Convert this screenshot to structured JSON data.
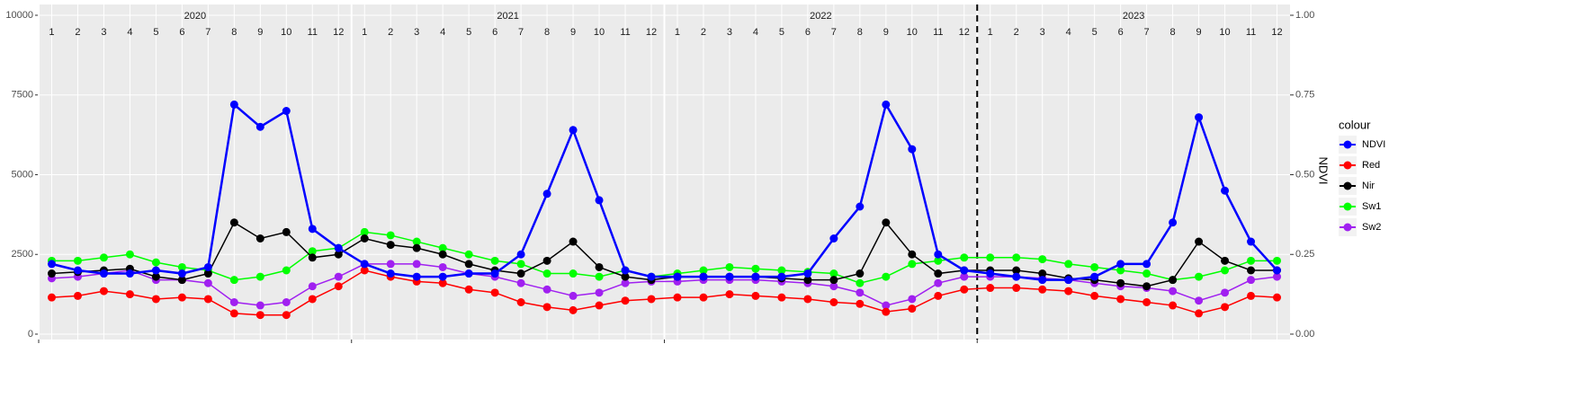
{
  "chart_data": {
    "type": "line",
    "years": [
      "2020",
      "2021",
      "2022",
      "2023"
    ],
    "categories": [
      "1",
      "2",
      "3",
      "4",
      "5",
      "6",
      "7",
      "8",
      "9",
      "10",
      "11",
      "12",
      "1",
      "2",
      "3",
      "4",
      "5",
      "6",
      "7",
      "8",
      "9",
      "10",
      "11",
      "12",
      "1",
      "2",
      "3",
      "4",
      "5",
      "6",
      "7",
      "8",
      "9",
      "10",
      "11",
      "12",
      "1",
      "2",
      "3",
      "4",
      "5",
      "6",
      "7",
      "8",
      "9",
      "10",
      "11",
      "12"
    ],
    "ylim": [
      0,
      10000
    ],
    "yticks": [
      0,
      2500,
      5000,
      7500,
      10000
    ],
    "y2label": "NDVI",
    "y2lim": [
      0,
      1
    ],
    "y2ticks": [
      {
        "value": 0,
        "label": "0.00"
      },
      {
        "value": 0.25,
        "label": "0.25"
      },
      {
        "value": 0.5,
        "label": "0.50"
      },
      {
        "value": 0.75,
        "label": "0.75"
      },
      {
        "value": 1,
        "label": "1.00"
      }
    ],
    "legend_title": "colour",
    "legend": "right",
    "grid": true,
    "series": [
      {
        "name": "NDVI",
        "color": "#0000ff",
        "axis": "y2",
        "values": [
          0.22,
          0.2,
          0.19,
          0.19,
          0.2,
          0.19,
          0.21,
          0.72,
          0.65,
          0.7,
          0.33,
          0.27,
          0.22,
          0.19,
          0.18,
          0.18,
          0.19,
          0.19,
          0.25,
          0.44,
          0.64,
          0.42,
          0.2,
          0.18,
          0.18,
          0.18,
          0.18,
          0.18,
          0.18,
          0.19,
          0.3,
          0.4,
          0.72,
          0.58,
          0.25,
          0.2,
          0.19,
          0.18,
          0.17,
          0.17,
          0.18,
          0.22,
          0.22,
          0.35,
          0.68,
          0.45,
          0.29,
          0.2
        ]
      },
      {
        "name": "Red",
        "color": "#ff0000",
        "values": [
          1150,
          1200,
          1350,
          1250,
          1100,
          1150,
          1100,
          650,
          600,
          600,
          1100,
          1500,
          2000,
          1800,
          1650,
          1600,
          1400,
          1300,
          1000,
          850,
          750,
          900,
          1050,
          1100,
          1150,
          1150,
          1250,
          1200,
          1150,
          1100,
          1000,
          950,
          700,
          800,
          1200,
          1400,
          1450,
          1450,
          1400,
          1350,
          1200,
          1100,
          1000,
          900,
          650,
          850,
          1200,
          1150
        ]
      },
      {
        "name": "Nir",
        "color": "#000000",
        "values": [
          1900,
          1950,
          2000,
          2050,
          1800,
          1700,
          1900,
          3500,
          3000,
          3200,
          2400,
          2500,
          3000,
          2800,
          2700,
          2500,
          2200,
          2000,
          1900,
          2300,
          2900,
          2100,
          1800,
          1700,
          1800,
          1800,
          1800,
          1800,
          1750,
          1700,
          1700,
          1900,
          3500,
          2500,
          1900,
          2000,
          2000,
          2000,
          1900,
          1750,
          1700,
          1600,
          1500,
          1700,
          2900,
          2300,
          2000,
          2000
        ]
      },
      {
        "name": "Sw1",
        "color": "#00ff00",
        "values": [
          2300,
          2300,
          2400,
          2500,
          2250,
          2100,
          2000,
          1700,
          1800,
          2000,
          2600,
          2700,
          3200,
          3100,
          2900,
          2700,
          2500,
          2300,
          2200,
          1900,
          1900,
          1800,
          2000,
          1800,
          1900,
          2000,
          2100,
          2050,
          2000,
          1950,
          1900,
          1600,
          1800,
          2200,
          2300,
          2400,
          2400,
          2400,
          2350,
          2200,
          2100,
          2000,
          1900,
          1700,
          1800,
          2000,
          2300,
          2300
        ]
      },
      {
        "name": "Sw2",
        "color": "#a020f0",
        "values": [
          1750,
          1800,
          1900,
          2000,
          1700,
          1700,
          1600,
          1000,
          900,
          1000,
          1500,
          1800,
          2200,
          2200,
          2200,
          2100,
          1900,
          1800,
          1600,
          1400,
          1200,
          1300,
          1600,
          1650,
          1650,
          1700,
          1700,
          1700,
          1650,
          1600,
          1500,
          1300,
          900,
          1100,
          1600,
          1800,
          1800,
          1800,
          1750,
          1700,
          1600,
          1500,
          1450,
          1350,
          1050,
          1300,
          1700,
          1800
        ]
      }
    ]
  }
}
